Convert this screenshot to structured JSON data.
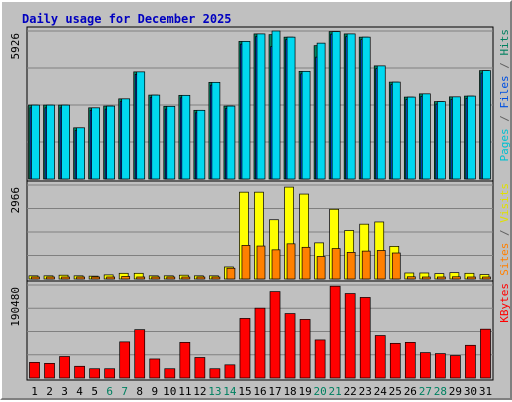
{
  "chart_data": {
    "type": "bar",
    "title": "Daily usage for December 2025",
    "categories": [
      "1",
      "2",
      "3",
      "4",
      "5",
      "6",
      "7",
      "8",
      "9",
      "10",
      "11",
      "12",
      "13",
      "14",
      "15",
      "16",
      "17",
      "18",
      "19",
      "20",
      "21",
      "22",
      "23",
      "24",
      "25",
      "26",
      "27",
      "28",
      "29",
      "30",
      "31"
    ],
    "weekend_days": [
      "6",
      "7",
      "13",
      "14",
      "20",
      "21",
      "27",
      "28"
    ],
    "panels": [
      {
        "name": "traffic",
        "max_label": "5926",
        "ylim": [
          0,
          5926
        ],
        "legend": [
          {
            "text": "Pages",
            "color": "#00c0d0"
          },
          {
            "text": " / ",
            "color": "#606060"
          },
          {
            "text": "Files",
            "color": "#0050e0"
          },
          {
            "text": " / ",
            "color": "#606060"
          },
          {
            "text": "Hits",
            "color": "#008060"
          }
        ],
        "series": [
          {
            "name": "Hits",
            "color": "#008060",
            "values": [
              2960,
              2960,
              2960,
              2050,
              2850,
              2920,
              3210,
              4290,
              3360,
              2910,
              3350,
              2750,
              3870,
              2920,
              5510,
              5810,
              5780,
              5680,
              4310,
              5340,
              5900,
              5810,
              5680,
              4530,
              3880,
              3280,
              3410,
              3100,
              3290,
              3320,
              4340
            ]
          },
          {
            "name": "Files",
            "color": "#0050e0",
            "values": [
              2850,
              2850,
              2850,
              1940,
              2750,
              2800,
              3100,
              4190,
              3260,
              2800,
              3250,
              2650,
              3760,
              2820,
              5400,
              5700,
              5300,
              5580,
              4210,
              4880,
              5800,
              5700,
              5580,
              4420,
              3780,
              3180,
              3310,
              3000,
              3190,
              3230,
              4240
            ]
          },
          {
            "name": "Pages",
            "color": "#00c0d0",
            "values": [
              2960,
              2960,
              2960,
              2050,
              2850,
              2920,
              3210,
              4290,
              3360,
              2910,
              3350,
              2750,
              3870,
              2920,
              5510,
              5810,
              5926,
              5680,
              4310,
              5440,
              5900,
              5810,
              5680,
              4530,
              3880,
              3280,
              3410,
              3100,
              3290,
              3320,
              4340
            ]
          }
        ]
      },
      {
        "name": "visits",
        "max_label": "2966",
        "ylim": [
          0,
          2966
        ],
        "legend": [
          {
            "text": "Sites",
            "color": "#ff8000"
          },
          {
            "text": " / ",
            "color": "#606060"
          },
          {
            "text": "Visits",
            "color": "#e0e000"
          }
        ],
        "series": [
          {
            "name": "Visits",
            "color": "#ffff00",
            "values": [
              100,
              100,
              120,
              100,
              90,
              130,
              180,
              180,
              100,
              100,
              120,
              100,
              100,
              380,
              2740,
              2740,
              1870,
              2900,
              2680,
              1140,
              2200,
              1530,
              1730,
              1800,
              1030,
              190,
              190,
              170,
              200,
              180,
              140
            ]
          },
          {
            "name": "Sites",
            "color": "#ff8000",
            "values": [
              60,
              60,
              60,
              60,
              50,
              60,
              80,
              60,
              60,
              60,
              60,
              60,
              60,
              340,
              1060,
              1040,
              920,
              1110,
              1000,
              710,
              960,
              840,
              880,
              900,
              820,
              70,
              60,
              60,
              70,
              60,
              60
            ]
          }
        ]
      },
      {
        "name": "kbytes",
        "max_label": "190480",
        "ylim": [
          0,
          190480
        ],
        "legend": [
          {
            "text": "KBytes",
            "color": "#ff0000"
          }
        ],
        "series": [
          {
            "name": "KBytes",
            "color": "#ff0000",
            "values": [
              32000,
              30000,
              44000,
              24000,
              19000,
              19000,
              74000,
              99000,
              39000,
              19000,
              73000,
              42000,
              19000,
              27000,
              122000,
              143000,
              177000,
              132000,
              120000,
              78000,
              188000,
              173000,
              165000,
              87000,
              71000,
              73000,
              52000,
              50000,
              46000,
              67000,
              100000
            ]
          }
        ]
      }
    ]
  }
}
